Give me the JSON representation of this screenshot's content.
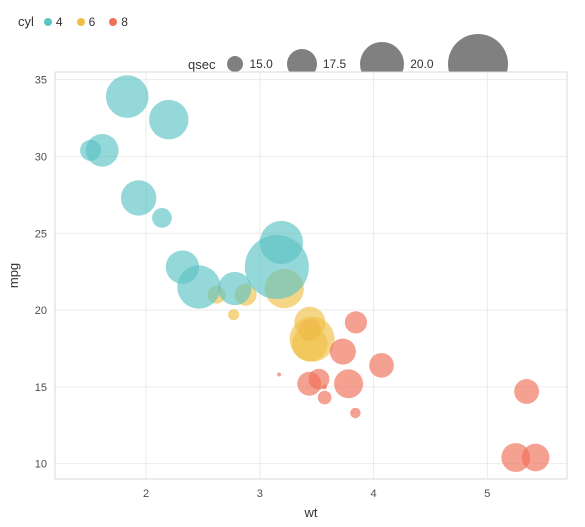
{
  "chart": {
    "type": "scatter-bubble",
    "background_color": "#ffffff",
    "panel_border_color": "#d9d9d9",
    "grid_color": "#ebebeb",
    "xlabel": "wt",
    "ylabel": "mpg",
    "label_fontsize": 13,
    "tick_fontsize": 11,
    "xlim": [
      1.2,
      5.7
    ],
    "ylim": [
      9,
      35.5
    ],
    "xticks": [
      2,
      3,
      4,
      5
    ],
    "yticks": [
      10,
      15,
      20,
      25,
      30,
      35
    ],
    "point_opacity": 0.65
  },
  "legend_cyl": {
    "title": "cyl",
    "title_fontsize": 13,
    "item_fontsize": 12,
    "items": [
      {
        "label": "4",
        "color": "#5cc3c4"
      },
      {
        "label": "6",
        "color": "#f0c046"
      },
      {
        "label": "8",
        "color": "#ef6f57"
      }
    ],
    "swatch_radius": 4
  },
  "legend_qsec": {
    "title": "qsec",
    "title_fontsize": 13,
    "item_fontsize": 12,
    "swatch_color": "#808080",
    "items": [
      {
        "label": "15.0",
        "diameter": 16
      },
      {
        "label": "17.5",
        "diameter": 30
      },
      {
        "label": "20.0",
        "diameter": 44
      },
      {
        "label": "",
        "diameter": 60
      }
    ]
  },
  "size_scale": {
    "qsec_min": 14.5,
    "qsec_max": 22.9,
    "r_min": 2,
    "r_max": 32
  },
  "data": [
    {
      "wt": 2.62,
      "mpg": 21.0,
      "qsec": 16.46,
      "cyl": 6
    },
    {
      "wt": 2.875,
      "mpg": 21.0,
      "qsec": 17.02,
      "cyl": 6
    },
    {
      "wt": 2.32,
      "mpg": 22.8,
      "qsec": 18.61,
      "cyl": 4
    },
    {
      "wt": 3.215,
      "mpg": 21.4,
      "qsec": 19.44,
      "cyl": 6
    },
    {
      "wt": 3.44,
      "mpg": 18.7,
      "qsec": 17.02,
      "cyl": 8
    },
    {
      "wt": 3.46,
      "mpg": 18.1,
      "qsec": 20.22,
      "cyl": 6
    },
    {
      "wt": 3.57,
      "mpg": 14.3,
      "qsec": 15.84,
      "cyl": 8
    },
    {
      "wt": 3.19,
      "mpg": 24.4,
      "qsec": 20.0,
      "cyl": 4
    },
    {
      "wt": 3.15,
      "mpg": 22.8,
      "qsec": 22.9,
      "cyl": 4
    },
    {
      "wt": 3.44,
      "mpg": 19.2,
      "qsec": 18.3,
      "cyl": 6
    },
    {
      "wt": 3.44,
      "mpg": 17.8,
      "qsec": 18.9,
      "cyl": 6
    },
    {
      "wt": 4.07,
      "mpg": 16.4,
      "qsec": 17.4,
      "cyl": 8
    },
    {
      "wt": 3.73,
      "mpg": 17.3,
      "qsec": 17.6,
      "cyl": 8
    },
    {
      "wt": 3.78,
      "mpg": 15.2,
      "qsec": 18.0,
      "cyl": 8
    },
    {
      "wt": 5.25,
      "mpg": 10.4,
      "qsec": 17.98,
      "cyl": 8
    },
    {
      "wt": 5.424,
      "mpg": 10.4,
      "qsec": 17.82,
      "cyl": 8
    },
    {
      "wt": 5.345,
      "mpg": 14.7,
      "qsec": 17.42,
      "cyl": 8
    },
    {
      "wt": 2.2,
      "mpg": 32.4,
      "qsec": 19.47,
      "cyl": 4
    },
    {
      "wt": 1.615,
      "mpg": 30.4,
      "qsec": 18.52,
      "cyl": 4
    },
    {
      "wt": 1.835,
      "mpg": 33.9,
      "qsec": 19.9,
      "cyl": 4
    },
    {
      "wt": 2.465,
      "mpg": 21.5,
      "qsec": 20.01,
      "cyl": 4
    },
    {
      "wt": 3.52,
      "mpg": 15.5,
      "qsec": 16.87,
      "cyl": 8
    },
    {
      "wt": 3.435,
      "mpg": 15.2,
      "qsec": 17.3,
      "cyl": 8
    },
    {
      "wt": 3.84,
      "mpg": 13.3,
      "qsec": 15.41,
      "cyl": 8
    },
    {
      "wt": 3.845,
      "mpg": 19.2,
      "qsec": 17.05,
      "cyl": 8
    },
    {
      "wt": 1.935,
      "mpg": 27.3,
      "qsec": 18.9,
      "cyl": 4
    },
    {
      "wt": 2.14,
      "mpg": 26.0,
      "qsec": 16.7,
      "cyl": 4
    },
    {
      "wt": 1.513,
      "mpg": 30.4,
      "qsec": 16.9,
      "cyl": 4
    },
    {
      "wt": 3.17,
      "mpg": 15.8,
      "qsec": 14.5,
      "cyl": 8
    },
    {
      "wt": 2.77,
      "mpg": 19.7,
      "qsec": 15.5,
      "cyl": 6
    },
    {
      "wt": 3.57,
      "mpg": 15.0,
      "qsec": 14.6,
      "cyl": 8
    },
    {
      "wt": 2.78,
      "mpg": 21.4,
      "qsec": 18.6,
      "cyl": 4
    }
  ]
}
